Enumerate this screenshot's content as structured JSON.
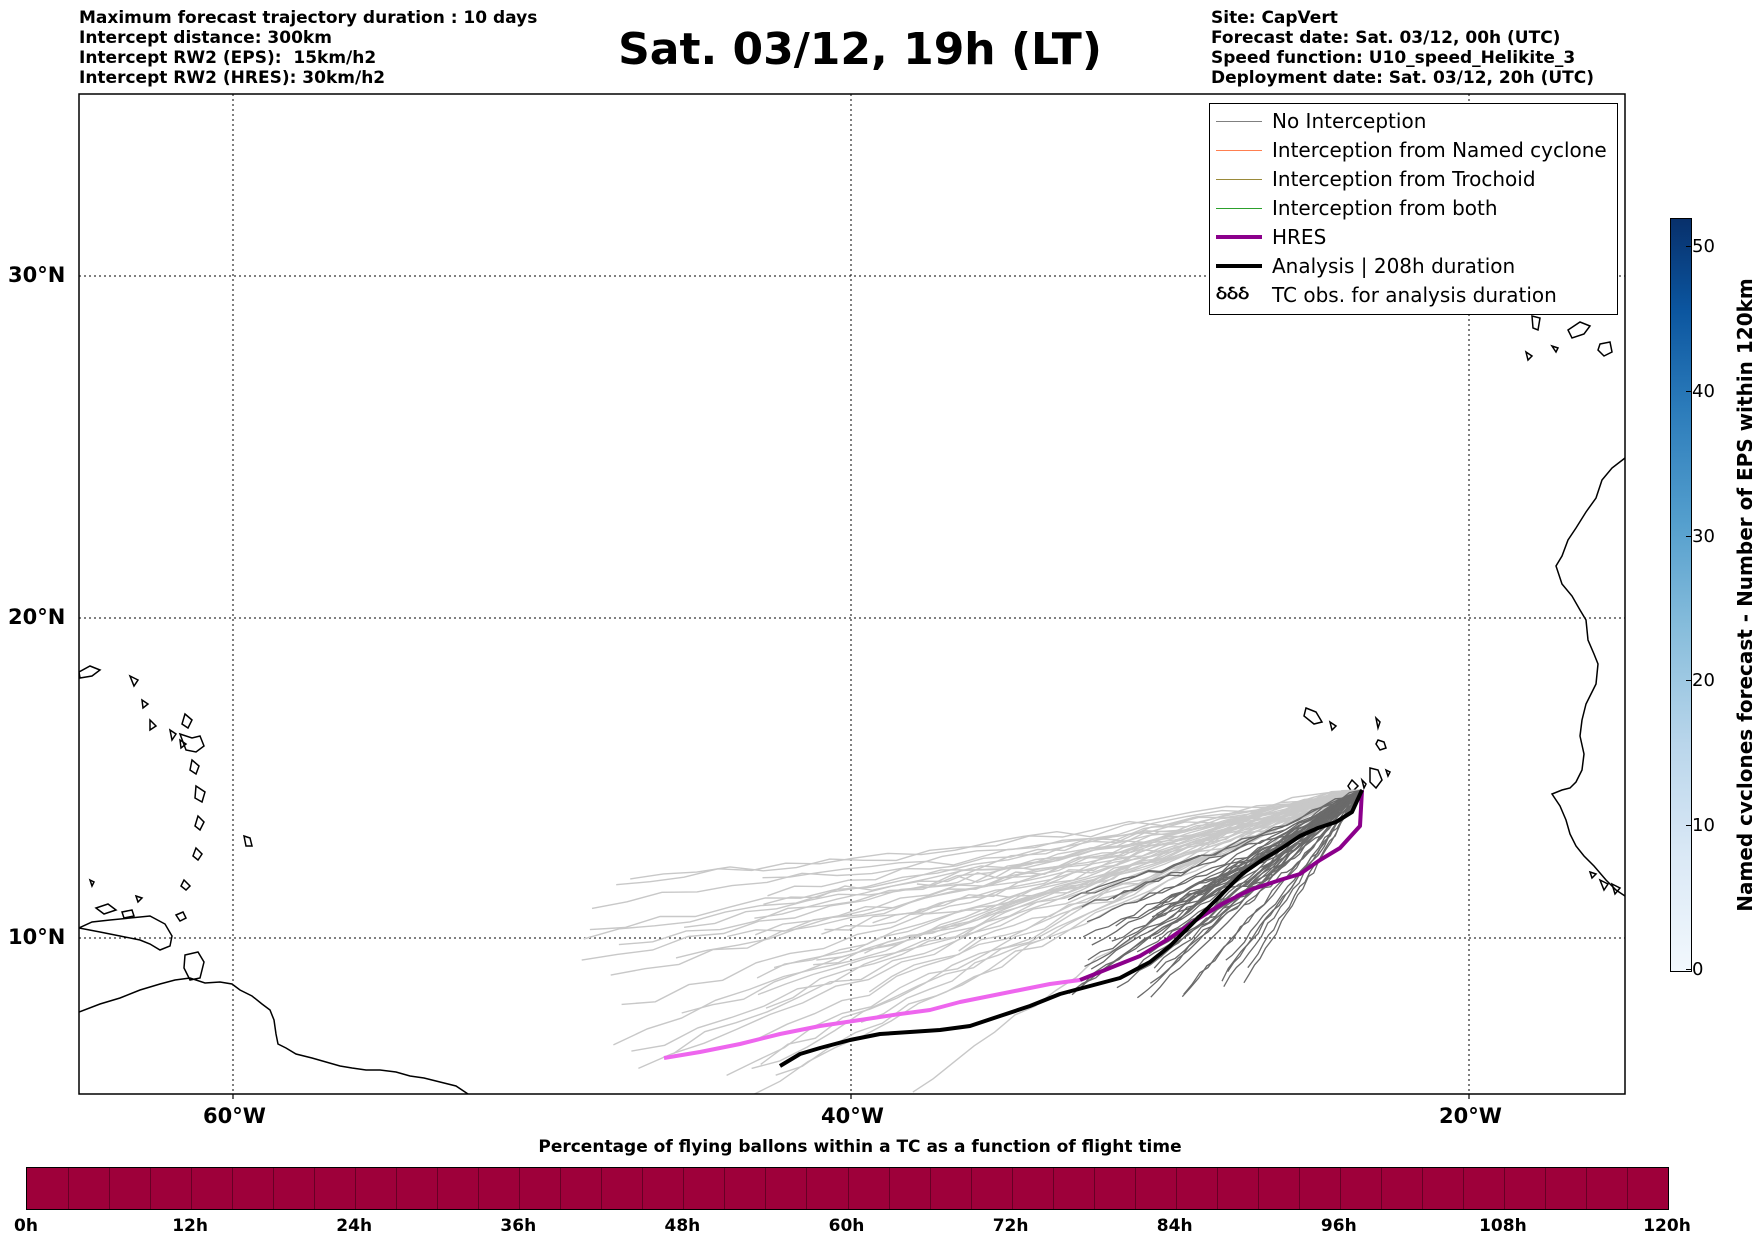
{
  "header": {
    "title": "Sat. 03/12, 19h (LT)",
    "left_lines": [
      "Maximum forecast trajectory duration : 10 days",
      "Intercept distance: 300km",
      "Intercept RW2 (EPS):  15km/h2",
      "Intercept RW2 (HRES): 30km/h2"
    ],
    "right_lines": [
      "Site: CapVert",
      "Forecast date: Sat. 03/12, 00h (UTC)",
      "Speed function: U10_speed_Helikite_3",
      "Deployment date: Sat. 03/12, 20h (UTC)"
    ]
  },
  "map": {
    "lat_labels": [
      "30°N",
      "20°N",
      "10°N"
    ],
    "lon_labels": [
      "60°W",
      "40°W",
      "20°W"
    ]
  },
  "legend": {
    "items": [
      {
        "label": "No Interception",
        "color": "#808080",
        "kind": "thin"
      },
      {
        "label": "Interception from Named cyclone",
        "color": "#ff7f50",
        "kind": "thin"
      },
      {
        "label": "Interception from Trochoid",
        "color": "#9a8a3a",
        "kind": "thin"
      },
      {
        "label": "Interception from both",
        "color": "#2ca02c",
        "kind": "thin"
      },
      {
        "label": "HRES",
        "color": "#8b008b",
        "kind": "thick"
      },
      {
        "label": "Analysis | 208h duration",
        "color": "#000000",
        "kind": "thick"
      },
      {
        "label": "TC obs. for analysis duration",
        "color": "#000000",
        "kind": "symbol",
        "symbol": "ઠઠઠ"
      }
    ]
  },
  "colorbar": {
    "label": "Named cyclones forecast - Number of EPS within 120km",
    "ticks": [
      "50",
      "40",
      "30",
      "20",
      "10",
      "0"
    ],
    "colors": {
      "low": "#f2f8fd",
      "high": "#08306b"
    }
  },
  "timebar": {
    "caption": "Percentage of flying ballons within a TC as a function of flight time",
    "color": "#9e003a",
    "labels": [
      "0h",
      "12h",
      "24h",
      "36h",
      "48h",
      "60h",
      "72h",
      "84h",
      "96h",
      "108h",
      "120h"
    ]
  }
}
